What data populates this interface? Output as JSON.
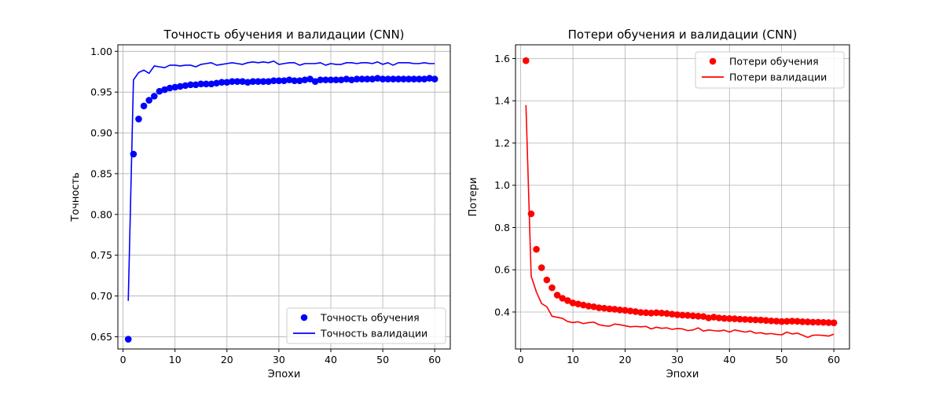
{
  "chart_data": [
    {
      "type": "scatter",
      "title": "Точность обучения и валидации (CNN)",
      "xlabel": "Эпохи",
      "ylabel": "Точность",
      "xlim": [
        -1,
        63
      ],
      "ylim": [
        0.635,
        1.008
      ],
      "xticks": [
        0,
        10,
        20,
        30,
        40,
        50,
        60
      ],
      "yticks": [
        0.65,
        0.7,
        0.75,
        0.8,
        0.85,
        0.9,
        0.95,
        1.0
      ],
      "ytick_labels": [
        "0.65",
        "0.70",
        "0.75",
        "0.80",
        "0.85",
        "0.90",
        "0.95",
        "1.00"
      ],
      "grid": true,
      "legend_position": "lower-right",
      "series": [
        {
          "name": "Точность обучения",
          "style": "points",
          "color": "#0000ff",
          "x": [
            1,
            2,
            3,
            4,
            5,
            6,
            7,
            8,
            9,
            10,
            11,
            12,
            13,
            14,
            15,
            16,
            17,
            18,
            19,
            20,
            21,
            22,
            23,
            24,
            25,
            26,
            27,
            28,
            29,
            30,
            31,
            32,
            33,
            34,
            35,
            36,
            37,
            38,
            39,
            40,
            41,
            42,
            43,
            44,
            45,
            46,
            47,
            48,
            49,
            50,
            51,
            52,
            53,
            54,
            55,
            56,
            57,
            58,
            59,
            60
          ],
          "values": [
            0.647,
            0.874,
            0.917,
            0.933,
            0.94,
            0.945,
            0.951,
            0.953,
            0.955,
            0.956,
            0.957,
            0.958,
            0.959,
            0.959,
            0.96,
            0.96,
            0.96,
            0.961,
            0.962,
            0.962,
            0.963,
            0.963,
            0.963,
            0.962,
            0.963,
            0.963,
            0.963,
            0.963,
            0.964,
            0.964,
            0.964,
            0.965,
            0.964,
            0.964,
            0.965,
            0.966,
            0.963,
            0.965,
            0.965,
            0.965,
            0.965,
            0.965,
            0.966,
            0.965,
            0.966,
            0.966,
            0.966,
            0.966,
            0.967,
            0.966,
            0.966,
            0.966,
            0.966,
            0.966,
            0.966,
            0.966,
            0.966,
            0.966,
            0.967,
            0.966
          ]
        },
        {
          "name": "Точность валидации",
          "style": "line",
          "color": "#0000ff",
          "x": [
            1,
            2,
            3,
            4,
            5,
            6,
            7,
            8,
            9,
            10,
            11,
            12,
            13,
            14,
            15,
            16,
            17,
            18,
            19,
            20,
            21,
            22,
            23,
            24,
            25,
            26,
            27,
            28,
            29,
            30,
            31,
            32,
            33,
            34,
            35,
            36,
            37,
            38,
            39,
            40,
            41,
            42,
            43,
            44,
            45,
            46,
            47,
            48,
            49,
            50,
            51,
            52,
            53,
            54,
            55,
            56,
            57,
            58,
            59,
            60
          ],
          "values": [
            0.694,
            0.965,
            0.974,
            0.977,
            0.973,
            0.982,
            0.981,
            0.98,
            0.983,
            0.983,
            0.982,
            0.983,
            0.983,
            0.981,
            0.984,
            0.985,
            0.986,
            0.983,
            0.984,
            0.985,
            0.986,
            0.985,
            0.984,
            0.986,
            0.987,
            0.986,
            0.987,
            0.986,
            0.988,
            0.984,
            0.985,
            0.986,
            0.986,
            0.983,
            0.985,
            0.985,
            0.985,
            0.986,
            0.983,
            0.985,
            0.984,
            0.984,
            0.986,
            0.986,
            0.985,
            0.986,
            0.986,
            0.985,
            0.987,
            0.984,
            0.986,
            0.983,
            0.986,
            0.986,
            0.986,
            0.985,
            0.985,
            0.986,
            0.985,
            0.985
          ]
        }
      ]
    },
    {
      "type": "scatter",
      "title": "Потери обучения и валидации (CNN)",
      "xlabel": "Эпохи",
      "ylabel": "Потери",
      "xlim": [
        -1,
        63
      ],
      "ylim": [
        0.225,
        1.665
      ],
      "xticks": [
        0,
        10,
        20,
        30,
        40,
        50,
        60
      ],
      "yticks": [
        0.4,
        0.6,
        0.8,
        1.0,
        1.2,
        1.4,
        1.6
      ],
      "ytick_labels": [
        "0.4",
        "0.6",
        "0.8",
        "1.0",
        "1.2",
        "1.4",
        "1.6"
      ],
      "grid": true,
      "legend_position": "upper-right",
      "series": [
        {
          "name": "Потери обучения",
          "style": "points",
          "color": "#ff0000",
          "x": [
            1,
            2,
            3,
            4,
            5,
            6,
            7,
            8,
            9,
            10,
            11,
            12,
            13,
            14,
            15,
            16,
            17,
            18,
            19,
            20,
            21,
            22,
            23,
            24,
            25,
            26,
            27,
            28,
            29,
            30,
            31,
            32,
            33,
            34,
            35,
            36,
            37,
            38,
            39,
            40,
            41,
            42,
            43,
            44,
            45,
            46,
            47,
            48,
            49,
            50,
            51,
            52,
            53,
            54,
            55,
            56,
            57,
            58,
            59,
            60
          ],
          "values": [
            1.59,
            0.865,
            0.697,
            0.61,
            0.552,
            0.515,
            0.48,
            0.465,
            0.454,
            0.443,
            0.438,
            0.433,
            0.428,
            0.425,
            0.42,
            0.418,
            0.415,
            0.413,
            0.41,
            0.408,
            0.405,
            0.402,
            0.398,
            0.397,
            0.395,
            0.397,
            0.395,
            0.393,
            0.39,
            0.387,
            0.385,
            0.384,
            0.382,
            0.38,
            0.379,
            0.372,
            0.376,
            0.372,
            0.37,
            0.369,
            0.368,
            0.366,
            0.365,
            0.364,
            0.363,
            0.362,
            0.36,
            0.358,
            0.357,
            0.355,
            0.356,
            0.357,
            0.356,
            0.354,
            0.353,
            0.352,
            0.352,
            0.351,
            0.35,
            0.349
          ]
        },
        {
          "name": "Потери валидации",
          "style": "line",
          "color": "#ff0000",
          "x": [
            1,
            2,
            3,
            4,
            5,
            6,
            7,
            8,
            9,
            10,
            11,
            12,
            13,
            14,
            15,
            16,
            17,
            18,
            19,
            20,
            21,
            22,
            23,
            24,
            25,
            26,
            27,
            28,
            29,
            30,
            31,
            32,
            33,
            34,
            35,
            36,
            37,
            38,
            39,
            40,
            41,
            42,
            43,
            44,
            45,
            46,
            47,
            48,
            49,
            50,
            51,
            52,
            53,
            54,
            55,
            56,
            57,
            58,
            59,
            60
          ],
          "values": [
            1.38,
            0.57,
            0.495,
            0.44,
            0.425,
            0.38,
            0.375,
            0.37,
            0.355,
            0.35,
            0.354,
            0.345,
            0.35,
            0.352,
            0.34,
            0.335,
            0.333,
            0.343,
            0.34,
            0.335,
            0.33,
            0.332,
            0.33,
            0.332,
            0.32,
            0.328,
            0.323,
            0.325,
            0.318,
            0.322,
            0.32,
            0.312,
            0.315,
            0.325,
            0.31,
            0.315,
            0.312,
            0.31,
            0.314,
            0.305,
            0.315,
            0.31,
            0.305,
            0.31,
            0.3,
            0.302,
            0.296,
            0.298,
            0.294,
            0.292,
            0.305,
            0.296,
            0.3,
            0.29,
            0.28,
            0.29,
            0.291,
            0.289,
            0.286,
            0.295
          ]
        }
      ]
    }
  ]
}
